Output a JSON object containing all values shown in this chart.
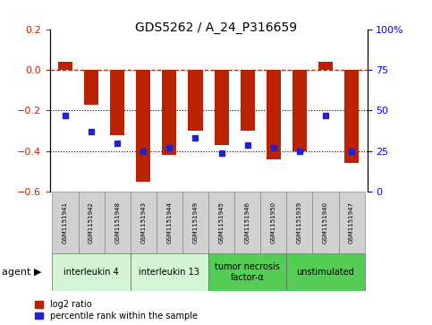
{
  "title": "GDS5262 / A_24_P316659",
  "samples": [
    "GSM1151941",
    "GSM1151942",
    "GSM1151948",
    "GSM1151943",
    "GSM1151944",
    "GSM1151949",
    "GSM1151945",
    "GSM1151946",
    "GSM1151950",
    "GSM1151939",
    "GSM1151940",
    "GSM1151947"
  ],
  "log2_ratio": [
    0.04,
    -0.17,
    -0.32,
    -0.55,
    -0.42,
    -0.3,
    -0.37,
    -0.3,
    -0.44,
    -0.4,
    0.04,
    -0.46
  ],
  "percentile_rank": [
    47,
    37,
    30,
    25,
    27,
    33,
    24,
    29,
    27,
    25,
    47,
    25
  ],
  "groups": [
    {
      "label": "interleukin 4",
      "start": 0,
      "end": 3,
      "color": "#d4f5d4"
    },
    {
      "label": "interleukin 13",
      "start": 3,
      "end": 6,
      "color": "#d4f5d4"
    },
    {
      "label": "tumor necrosis\nfactor-α",
      "start": 6,
      "end": 9,
      "color": "#55cc55"
    },
    {
      "label": "unstimulated",
      "start": 9,
      "end": 12,
      "color": "#55cc55"
    }
  ],
  "ylim_left": [
    -0.6,
    0.2
  ],
  "ylim_right": [
    0,
    100
  ],
  "yticks_left": [
    -0.6,
    -0.4,
    -0.2,
    0.0,
    0.2
  ],
  "yticks_right": [
    0,
    25,
    50,
    75,
    100
  ],
  "bar_color": "#bb2200",
  "dot_color": "#2222cc",
  "dotted_line_y": [
    -0.2,
    -0.4
  ],
  "bar_width": 0.55,
  "title_fontsize": 10,
  "tick_fontsize": 8,
  "sample_fontsize": 5,
  "group_fontsize": 7,
  "legend_fontsize": 7,
  "agent_fontsize": 8
}
